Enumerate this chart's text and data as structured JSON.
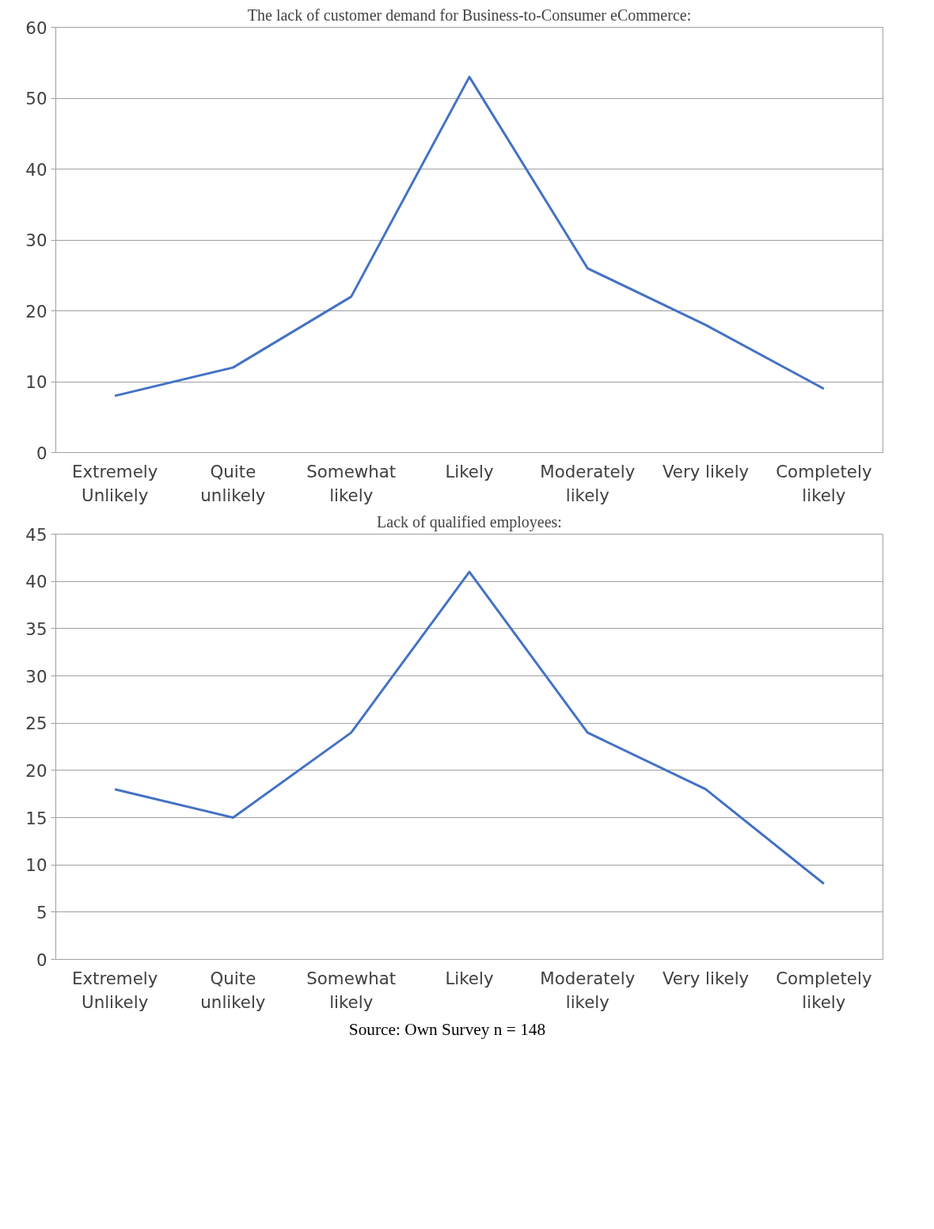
{
  "chart_data": [
    {
      "type": "line",
      "title": "The lack of customer demand for Business-to-Consumer eCommerce:",
      "categories": [
        "Extremely Unlikely",
        "Quite unlikely",
        "Somewhat likely",
        "Likely",
        "Moderately likely",
        "Very likely",
        "Completely likely"
      ],
      "series": [
        {
          "color": "#4472c4",
          "values": [
            8,
            12,
            22,
            53,
            26,
            18,
            9
          ]
        }
      ],
      "ylim": [
        0,
        60
      ],
      "yticks": [
        0,
        10,
        20,
        30,
        40,
        50,
        60
      ],
      "grid": "y",
      "marker": "none",
      "line_style": "solid"
    },
    {
      "type": "line",
      "title": "Lack of qualified employees:",
      "categories": [
        "Extremely Unlikely",
        "Quite unlikely",
        "Somewhat likely",
        "Likely",
        "Moderately likely",
        "Very likely",
        "Completely likely"
      ],
      "series": [
        {
          "color": "#4472c4",
          "values": [
            18,
            15,
            24,
            41,
            24,
            18,
            8
          ]
        }
      ],
      "ylim": [
        0,
        45
      ],
      "yticks": [
        0,
        5,
        10,
        15,
        20,
        25,
        30,
        35,
        40,
        45
      ],
      "grid": "y",
      "marker": "none",
      "line_style": "solid",
      "annotations": [
        "Source: Own Survey n = 148"
      ]
    }
  ]
}
